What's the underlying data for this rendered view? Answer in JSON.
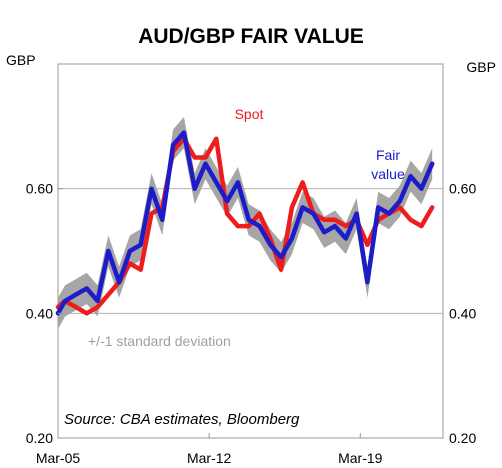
{
  "chart_data": {
    "type": "line",
    "title": "AUD/GBP FAIR VALUE",
    "ylabel_left": "GBP",
    "ylabel_right": "GBP",
    "ylim": [
      0.2,
      0.8
    ],
    "yticks": [
      0.2,
      0.4,
      0.6
    ],
    "ytick_labels": [
      "0.20",
      "0.40",
      "0.60"
    ],
    "xlim": [
      2005.17,
      2023.0
    ],
    "xticks": [
      2005.17,
      2012.17,
      2019.17
    ],
    "xtick_labels": [
      "Mar-05",
      "Mar-12",
      "Mar-19"
    ],
    "grid": "horizontal at 0.60",
    "colors": {
      "spot": "#ee1c1c",
      "fair_value": "#1c1cc8",
      "band": "#a6a6a6",
      "grid": "#b3b3b3",
      "frame": "#999999"
    },
    "annotations": {
      "spot": "Spot",
      "fair_value_line1": "Fair",
      "fair_value_line2": "value",
      "band": "+/-1 standard deviation",
      "source": "Source: CBA estimates, Bloomberg"
    },
    "series": [
      {
        "name": "Spot",
        "x": [
          2005.17,
          2005.5,
          2006.0,
          2006.5,
          2007.0,
          2007.5,
          2008.0,
          2008.5,
          2009.0,
          2009.5,
          2010.0,
          2010.5,
          2011.0,
          2011.5,
          2012.0,
          2012.5,
          2013.0,
          2013.5,
          2014.0,
          2014.5,
          2015.0,
          2015.5,
          2016.0,
          2016.5,
          2017.0,
          2017.5,
          2018.0,
          2018.5,
          2019.0,
          2019.5,
          2020.0,
          2020.5,
          2021.0,
          2021.5,
          2022.0,
          2022.5
        ],
        "y": [
          0.41,
          0.42,
          0.41,
          0.4,
          0.41,
          0.43,
          0.45,
          0.48,
          0.47,
          0.56,
          0.57,
          0.66,
          0.68,
          0.65,
          0.65,
          0.68,
          0.56,
          0.54,
          0.54,
          0.56,
          0.52,
          0.47,
          0.57,
          0.61,
          0.56,
          0.55,
          0.55,
          0.54,
          0.55,
          0.51,
          0.55,
          0.56,
          0.57,
          0.55,
          0.54,
          0.57
        ]
      },
      {
        "name": "Fair value",
        "x": [
          2005.17,
          2005.5,
          2006.0,
          2006.5,
          2007.0,
          2007.5,
          2008.0,
          2008.5,
          2009.0,
          2009.5,
          2010.0,
          2010.5,
          2011.0,
          2011.5,
          2012.0,
          2012.5,
          2013.0,
          2013.5,
          2014.0,
          2014.5,
          2015.0,
          2015.5,
          2016.0,
          2016.5,
          2017.0,
          2017.5,
          2018.0,
          2018.5,
          2019.0,
          2019.5,
          2020.0,
          2020.5,
          2021.0,
          2021.5,
          2022.0,
          2022.5
        ],
        "y": [
          0.4,
          0.42,
          0.43,
          0.44,
          0.42,
          0.5,
          0.45,
          0.5,
          0.51,
          0.6,
          0.55,
          0.67,
          0.69,
          0.6,
          0.64,
          0.61,
          0.58,
          0.61,
          0.55,
          0.54,
          0.51,
          0.49,
          0.52,
          0.57,
          0.56,
          0.53,
          0.54,
          0.52,
          0.56,
          0.45,
          0.57,
          0.56,
          0.58,
          0.62,
          0.6,
          0.64
        ]
      }
    ],
    "band_half_width": 0.025
  }
}
